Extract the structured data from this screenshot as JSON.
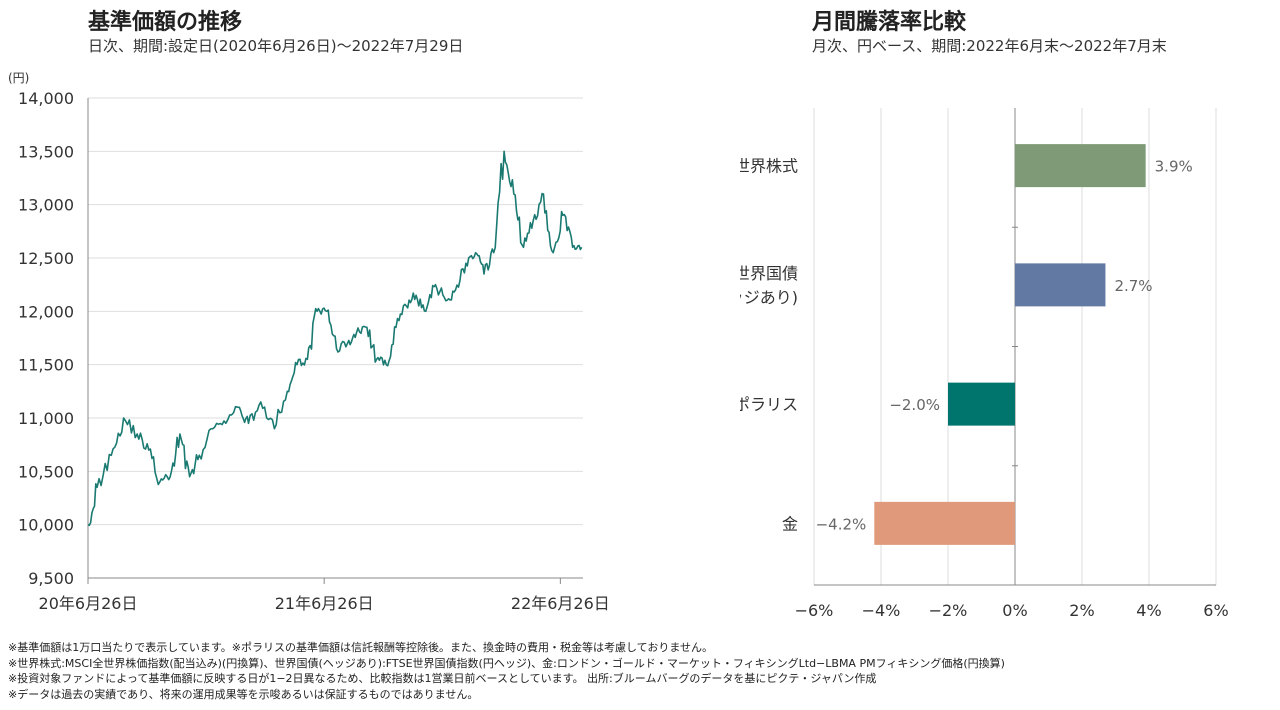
{
  "left": {
    "title": "基準価額の推移",
    "subtitle": "日次、期間:設定日(2020年6月26日)〜2022年7月29日",
    "unit": "(円)"
  },
  "right": {
    "title": "月間騰落率比較",
    "subtitle": "月次、円ベース、期間:2022年6月末〜2022年7月末"
  },
  "notes": [
    "※基準価額は1万口当たりで表示しています。※ポラリスの基準価額は信託報酬等控除後。また、換金時の費用・税金等は考慮しておりません。",
    "※世界株式:MSCI全世界株価指数(配当込み)(円換算)、世界国債(ヘッジあり):FTSE世界国債指数(円ヘッジ)、金:ロンドン・ゴールド・マーケット・フィキシングLtd−LBMA PMフィキシング価格(円換算)",
    "※投資対象ファンドによって基準価額に反映する日が1−2日異なるため、比較指数は1営業日前ベースとしています。 出所:ブルームバーグのデータを基にピクテ・ジャパン作成",
    "※データは過去の実績であり、将来の運用成果等を示唆あるいは保証するものではありません。"
  ],
  "chart_data": [
    {
      "type": "line",
      "ylim": [
        9500,
        14000
      ],
      "ytick_labels": [
        "9,500",
        "10,000",
        "10,500",
        "11,000",
        "11,500",
        "12,000",
        "12,500",
        "13,000",
        "13,500",
        "14,000"
      ],
      "yticks": [
        9500,
        10000,
        10500,
        11000,
        11500,
        12000,
        12500,
        13000,
        13500,
        14000
      ],
      "xlim": [
        "2020-06-26",
        "2022-07-29"
      ],
      "xticks": [
        "2020-06-26",
        "2021-06-26",
        "2022-06-26"
      ],
      "xtick_labels": [
        "20年6月26日",
        "21年6月26日",
        "22年6月26日"
      ],
      "grid": true,
      "color": "#1a7a72",
      "series": [
        {
          "x": [
            "2020-06-26",
            "2020-07-10",
            "2020-08-01",
            "2020-08-20",
            "2020-09-10",
            "2020-09-28",
            "2020-10-15",
            "2020-10-31",
            "2020-11-15",
            "2020-11-30",
            "2020-12-15",
            "2021-01-05",
            "2021-01-25",
            "2021-02-15",
            "2021-03-01",
            "2021-03-20",
            "2021-04-10",
            "2021-04-30",
            "2021-05-15",
            "2021-05-31",
            "2021-06-15",
            "2021-06-30",
            "2021-07-15",
            "2021-08-01",
            "2021-08-15",
            "2021-08-31",
            "2021-09-15",
            "2021-09-30",
            "2021-10-15",
            "2021-10-31",
            "2021-11-15",
            "2021-11-30",
            "2021-12-15",
            "2021-12-31",
            "2022-01-15",
            "2022-01-31",
            "2022-02-15",
            "2022-02-28",
            "2022-03-15",
            "2022-03-31",
            "2022-04-15",
            "2022-04-30",
            "2022-05-15",
            "2022-05-31",
            "2022-06-15",
            "2022-06-30",
            "2022-07-15",
            "2022-07-29"
          ],
          "y": [
            10000,
            10350,
            10650,
            11000,
            10850,
            10700,
            10400,
            10450,
            10850,
            10450,
            10650,
            10900,
            10950,
            11100,
            10950,
            11150,
            10900,
            11250,
            11500,
            11550,
            12000,
            12000,
            11650,
            11700,
            11800,
            11850,
            11550,
            11500,
            11850,
            12050,
            12150,
            12000,
            12250,
            12100,
            12200,
            12450,
            12550,
            12350,
            12550,
            13500,
            13100,
            12600,
            12850,
            13100,
            12550,
            12900,
            12600,
            12600
          ]
        }
      ]
    },
    {
      "type": "bar",
      "orientation": "horizontal",
      "categories": [
        "世界株式",
        "世界国債\n(ヘッジあり)",
        "ポラリス",
        "金"
      ],
      "category_lines": [
        [
          "世界株式"
        ],
        [
          "世界国債",
          "(ヘッジあり)"
        ],
        [
          "ポラリス"
        ],
        [
          "金"
        ]
      ],
      "values": [
        3.9,
        2.7,
        -2.0,
        -4.2
      ],
      "value_labels": [
        "3.9%",
        "2.7%",
        "−2.0%",
        "−4.2%"
      ],
      "colors": [
        "#7e9a76",
        "#627aa3",
        "#00756e",
        "#e0997a"
      ],
      "xlim": [
        -6,
        6
      ],
      "xticks": [
        -6,
        -4,
        -2,
        0,
        2,
        4,
        6
      ],
      "xtick_labels": [
        "−6%",
        "−4%",
        "−2%",
        "0%",
        "2%",
        "4%",
        "6%"
      ],
      "grid": true
    }
  ]
}
